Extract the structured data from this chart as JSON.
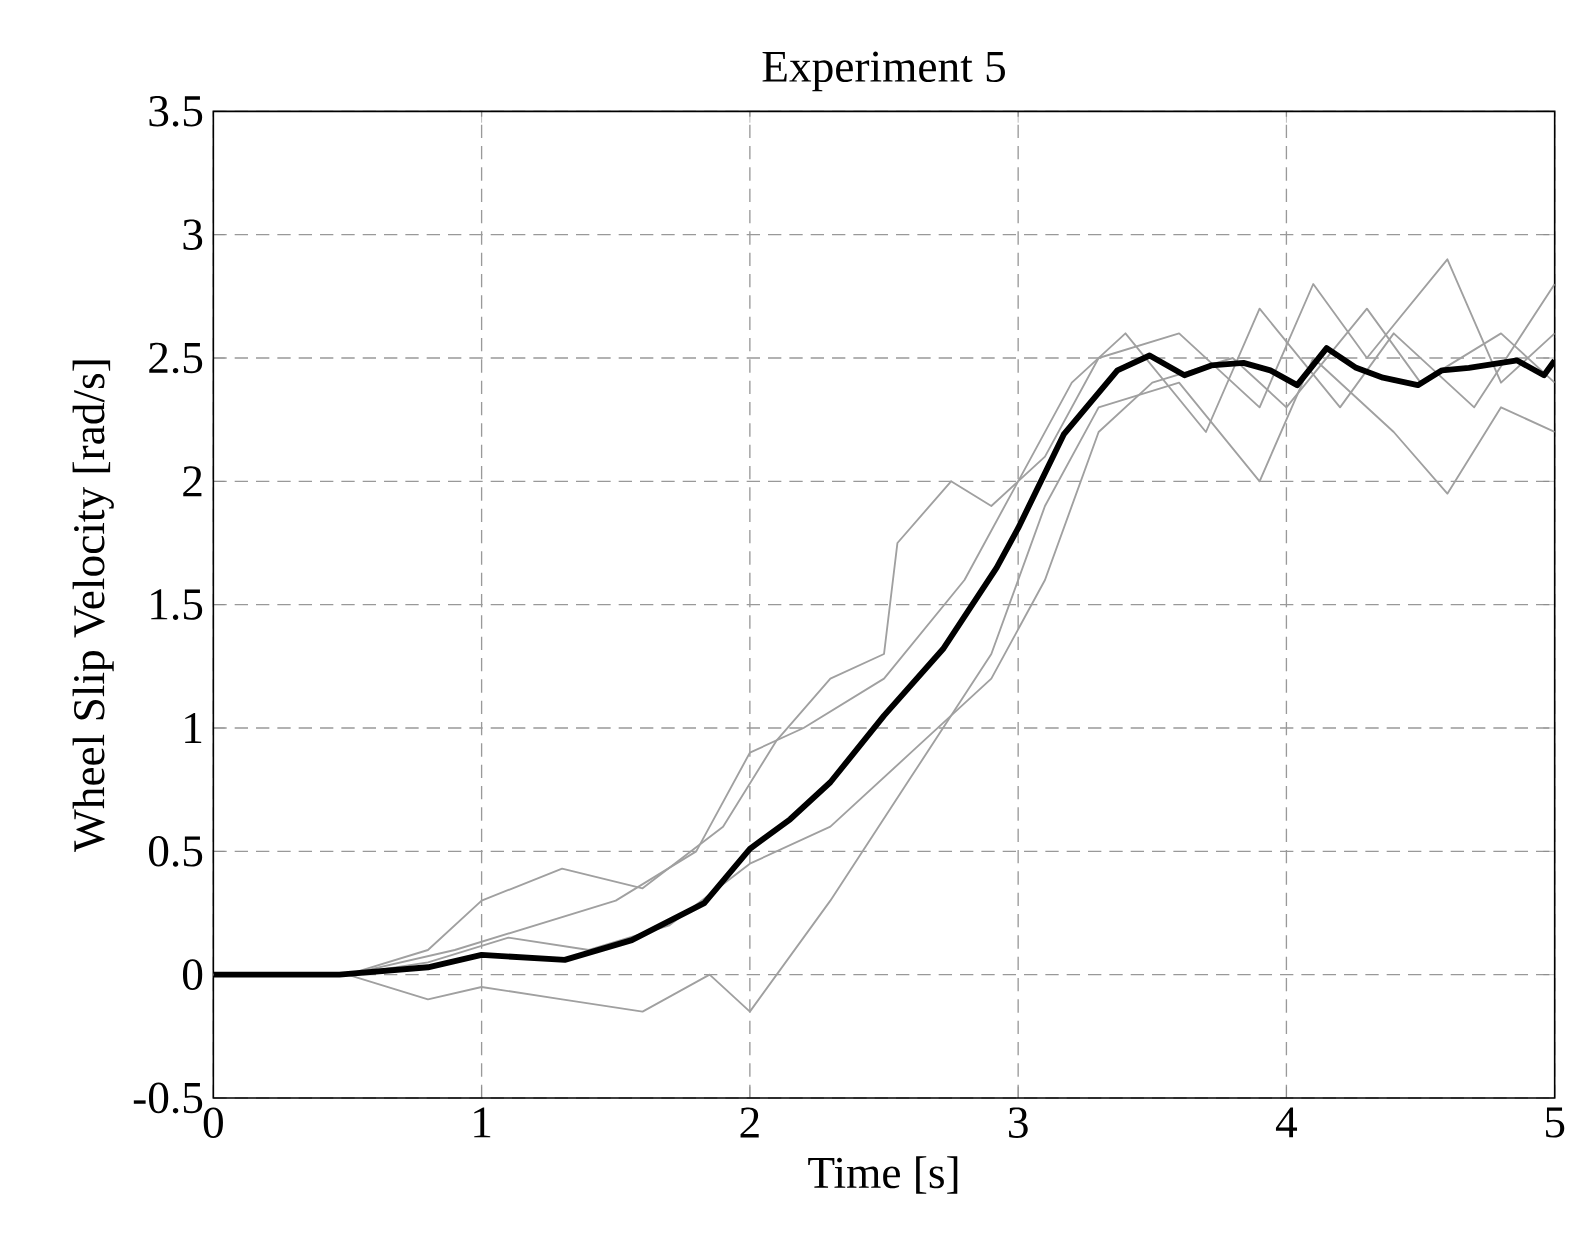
{
  "chart_data": {
    "type": "line",
    "title": "Experiment 5",
    "xlabel": "Time [s]",
    "ylabel": "Wheel Slip Velocity [rad/s]",
    "xlim": [
      0,
      5
    ],
    "ylim": [
      -0.5,
      3.5
    ],
    "xticks": [
      0,
      1,
      2,
      3,
      4,
      5
    ],
    "yticks": [
      -0.5,
      0,
      0.5,
      1,
      1.5,
      2,
      2.5,
      3,
      3.5
    ],
    "grid": true,
    "series": [
      {
        "color": "#a0a0a0",
        "x": [
          0,
          0.5,
          0.8,
          1.0,
          1.3,
          1.6,
          1.9,
          2.1,
          2.3,
          2.5,
          2.55,
          2.75,
          2.9,
          3.1,
          3.3,
          3.6,
          3.9,
          4.1,
          4.3,
          4.6,
          4.8,
          5
        ],
        "values": [
          0,
          0,
          0.1,
          0.3,
          0.43,
          0.35,
          0.6,
          0.95,
          1.2,
          1.3,
          1.75,
          2.0,
          1.9,
          2.1,
          2.5,
          2.6,
          2.3,
          2.8,
          2.5,
          2.9,
          2.4,
          2.6
        ]
      },
      {
        "color": "#a0a0a0",
        "x": [
          0,
          0.5,
          0.8,
          1.0,
          1.3,
          1.6,
          1.85,
          2.0,
          2.3,
          2.6,
          2.9,
          3.1,
          3.3,
          3.6,
          3.9,
          4.1,
          4.4,
          4.6,
          4.8,
          5
        ],
        "values": [
          0,
          0,
          -0.1,
          -0.05,
          -0.1,
          -0.15,
          0.0,
          -0.15,
          0.3,
          0.8,
          1.3,
          1.9,
          2.3,
          2.4,
          2.0,
          2.5,
          2.2,
          1.95,
          2.3,
          2.2
        ]
      },
      {
        "color": "#a0a0a0",
        "x": [
          0,
          0.5,
          0.9,
          1.2,
          1.5,
          1.8,
          2.0,
          2.2,
          2.5,
          2.8,
          3.0,
          3.2,
          3.4,
          3.7,
          3.9,
          4.2,
          4.4,
          4.7,
          5
        ],
        "values": [
          0,
          0,
          0.1,
          0.2,
          0.3,
          0.5,
          0.9,
          1.0,
          1.2,
          1.6,
          2.0,
          2.4,
          2.6,
          2.2,
          2.7,
          2.3,
          2.6,
          2.3,
          2.8
        ]
      },
      {
        "color": "#a0a0a0",
        "x": [
          0,
          0.5,
          0.8,
          1.1,
          1.4,
          1.7,
          2.0,
          2.3,
          2.6,
          2.9,
          3.1,
          3.3,
          3.5,
          3.8,
          4.0,
          4.3,
          4.5,
          4.8,
          5
        ],
        "values": [
          0,
          0,
          0.05,
          0.15,
          0.1,
          0.2,
          0.45,
          0.6,
          0.9,
          1.2,
          1.6,
          2.2,
          2.4,
          2.5,
          2.3,
          2.7,
          2.4,
          2.6,
          2.4
        ]
      },
      {
        "color": "#000000",
        "x": [
          0,
          0.47,
          0.8,
          1.0,
          1.31,
          1.56,
          1.83,
          2.0,
          2.15,
          2.3,
          2.5,
          2.72,
          2.92,
          3.0,
          3.17,
          3.37,
          3.49,
          3.62,
          3.72,
          3.84,
          3.94,
          4.04,
          4.15,
          4.26,
          4.36,
          4.49,
          4.58,
          4.68,
          4.86,
          4.96,
          5.0
        ],
        "values": [
          0,
          0,
          0.03,
          0.08,
          0.06,
          0.14,
          0.29,
          0.51,
          0.63,
          0.78,
          1.05,
          1.32,
          1.65,
          1.81,
          2.19,
          2.45,
          2.51,
          2.43,
          2.47,
          2.48,
          2.45,
          2.39,
          2.54,
          2.46,
          2.42,
          2.39,
          2.45,
          2.46,
          2.49,
          2.43,
          2.49
        ]
      }
    ]
  }
}
